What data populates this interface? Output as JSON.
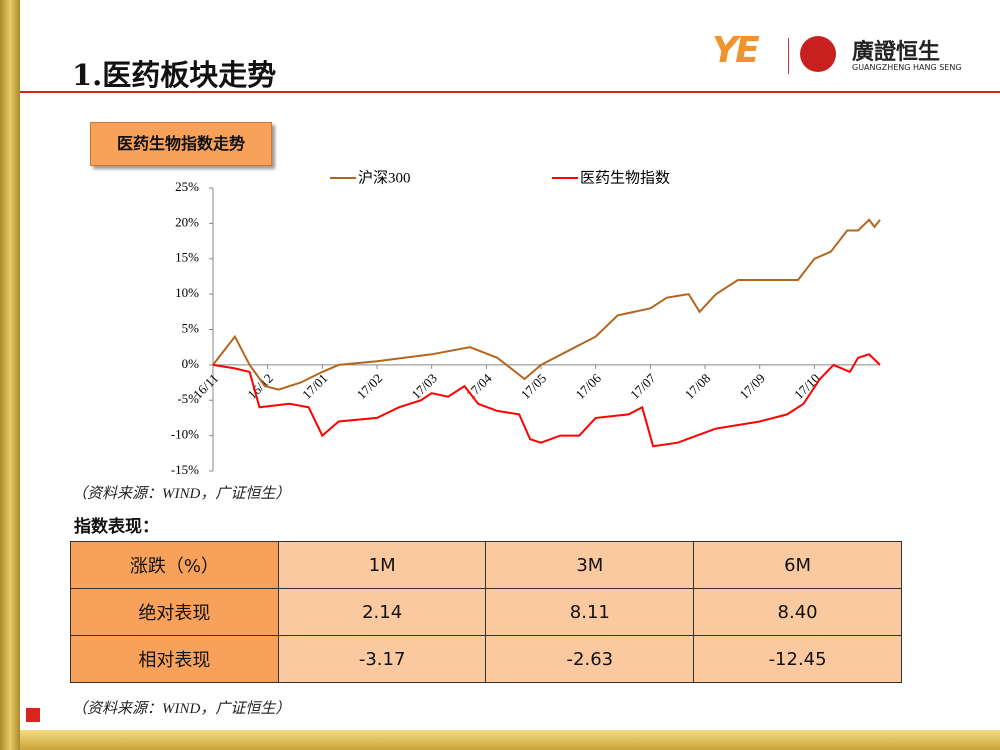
{
  "header": {
    "title": "1.医药板块走势",
    "logo_mark": "YE",
    "logo_name": "廣證恒生",
    "logo_sub": "GUANGZHENG HANG SENG"
  },
  "section_label": "医药生物指数走势",
  "chart_data": {
    "type": "line",
    "series": [
      {
        "name": "沪深300",
        "color": "#b5651d",
        "x": [
          0,
          0.4,
          0.67,
          0.95,
          1.2,
          1.6,
          2,
          2.3,
          3,
          3.5,
          4,
          4.7,
          5.2,
          5.7,
          6,
          6.5,
          7,
          7.4,
          8,
          8.3,
          8.7,
          8.9,
          9.2,
          9.6,
          10,
          10.7,
          11,
          11.3,
          11.6,
          11.8,
          12,
          12.1,
          12.2
        ],
        "values": [
          0,
          4,
          0,
          -3,
          -3.5,
          -2.5,
          -1,
          0,
          0.5,
          1,
          1.5,
          2.5,
          1,
          -2,
          0,
          2,
          4,
          7,
          8,
          9.5,
          10,
          7.5,
          10,
          12,
          12,
          12,
          15,
          16,
          19,
          19,
          20.5,
          19.5,
          20.5
        ]
      },
      {
        "name": "医药生物指数",
        "color": "#ff0000",
        "x": [
          0,
          0.4,
          0.67,
          0.85,
          1.4,
          1.75,
          2,
          2.3,
          3,
          3.4,
          3.8,
          4,
          4.3,
          4.6,
          4.85,
          5.2,
          5.6,
          5.8,
          6,
          6.35,
          6.7,
          7,
          7.6,
          7.85,
          8.05,
          8.5,
          8.85,
          9.2,
          10,
          10.5,
          10.8,
          11.1,
          11.35,
          11.65,
          11.8,
          12,
          12.2
        ],
        "values": [
          0,
          -0.5,
          -1,
          -6,
          -5.5,
          -6,
          -10,
          -8,
          -7.5,
          -6,
          -5,
          -4,
          -4.5,
          -3,
          -5.5,
          -6.5,
          -7,
          -10.5,
          -11,
          -10,
          -10,
          -7.5,
          -7,
          -6,
          -11.5,
          -11,
          -10,
          -9,
          -8,
          -7,
          -5.5,
          -2,
          0,
          -1,
          1,
          1.5,
          0
        ]
      }
    ],
    "xlim": [
      0,
      12.2
    ],
    "xticks": [
      {
        "value": 0,
        "label": "16/11"
      },
      {
        "value": 1,
        "label": "16/12"
      },
      {
        "value": 2,
        "label": "17/01"
      },
      {
        "value": 3,
        "label": "17/02"
      },
      {
        "value": 4,
        "label": "17/03"
      },
      {
        "value": 5,
        "label": "17/04"
      },
      {
        "value": 6,
        "label": "17/05"
      },
      {
        "value": 7,
        "label": "17/06"
      },
      {
        "value": 8,
        "label": "17/07"
      },
      {
        "value": 9,
        "label": "17/08"
      },
      {
        "value": 10,
        "label": "17/09"
      },
      {
        "value": 11,
        "label": "17/10"
      }
    ],
    "ylim": [
      -15,
      25
    ],
    "yticks": [
      {
        "value": -15,
        "label": "-15%"
      },
      {
        "value": -10,
        "label": "-10%"
      },
      {
        "value": -5,
        "label": "-5%"
      },
      {
        "value": 0,
        "label": "0%"
      },
      {
        "value": 5,
        "label": "5%"
      },
      {
        "value": 10,
        "label": "10%"
      },
      {
        "value": 15,
        "label": "15%"
      },
      {
        "value": 20,
        "label": "20%"
      },
      {
        "value": 25,
        "label": "25%"
      }
    ],
    "source": "（资料来源：WIND，广证恒生）"
  },
  "table_title": "指数表现：",
  "table": {
    "header": [
      "涨跌（%）",
      "1M",
      "3M",
      "6M"
    ],
    "rows": [
      [
        "绝对表现",
        "2.14",
        "8.11",
        "8.40"
      ],
      [
        "相对表现",
        "-3.17",
        "-2.63",
        "-12.45"
      ]
    ]
  },
  "source": "（资料来源：WIND，广证恒生）"
}
